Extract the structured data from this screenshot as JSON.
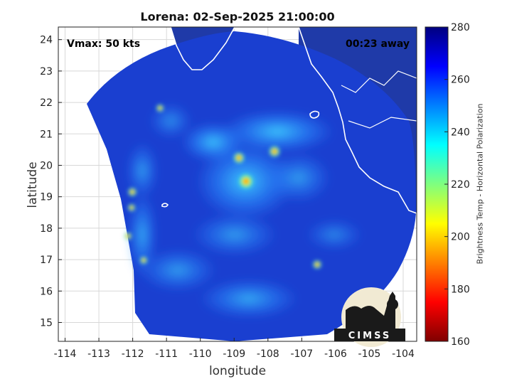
{
  "title": "Lorena: 02-Sep-2025 21:00:00",
  "vmax_label": "Vmax: 50 kts",
  "time_away_label": "00:23 away",
  "map": {
    "xlabel": "longitude",
    "ylabel": "latitude",
    "xlim": [
      -114.2,
      -103.6
    ],
    "ylim": [
      14.4,
      24.4
    ],
    "x_ticks": [
      -114,
      -113,
      -112,
      -111,
      -110,
      -109,
      -108,
      -107,
      -106,
      -105,
      -104
    ],
    "y_ticks": [
      15,
      16,
      17,
      18,
      19,
      20,
      21,
      22,
      23,
      24
    ],
    "grid": true,
    "storm_center": {
      "lon": -108.7,
      "lat": 19.5
    },
    "swath_background_color": "#1a3fd0",
    "land_color": "#1f3aa8",
    "coastline_color": "#ffffff"
  },
  "colorbar": {
    "label": "Brightness Temp - Horizontal Polarization",
    "min": 160,
    "max": 280,
    "ticks": [
      160,
      180,
      200,
      220,
      240,
      260,
      280
    ],
    "colormap": [
      "#7f0000",
      "#ff0000",
      "#ff8000",
      "#ffff00",
      "#7fff7f",
      "#00ffff",
      "#0080ff",
      "#0000ff",
      "#00007f"
    ]
  },
  "logo": {
    "text": "CIMSS",
    "badge_color": "#f1ead3"
  }
}
